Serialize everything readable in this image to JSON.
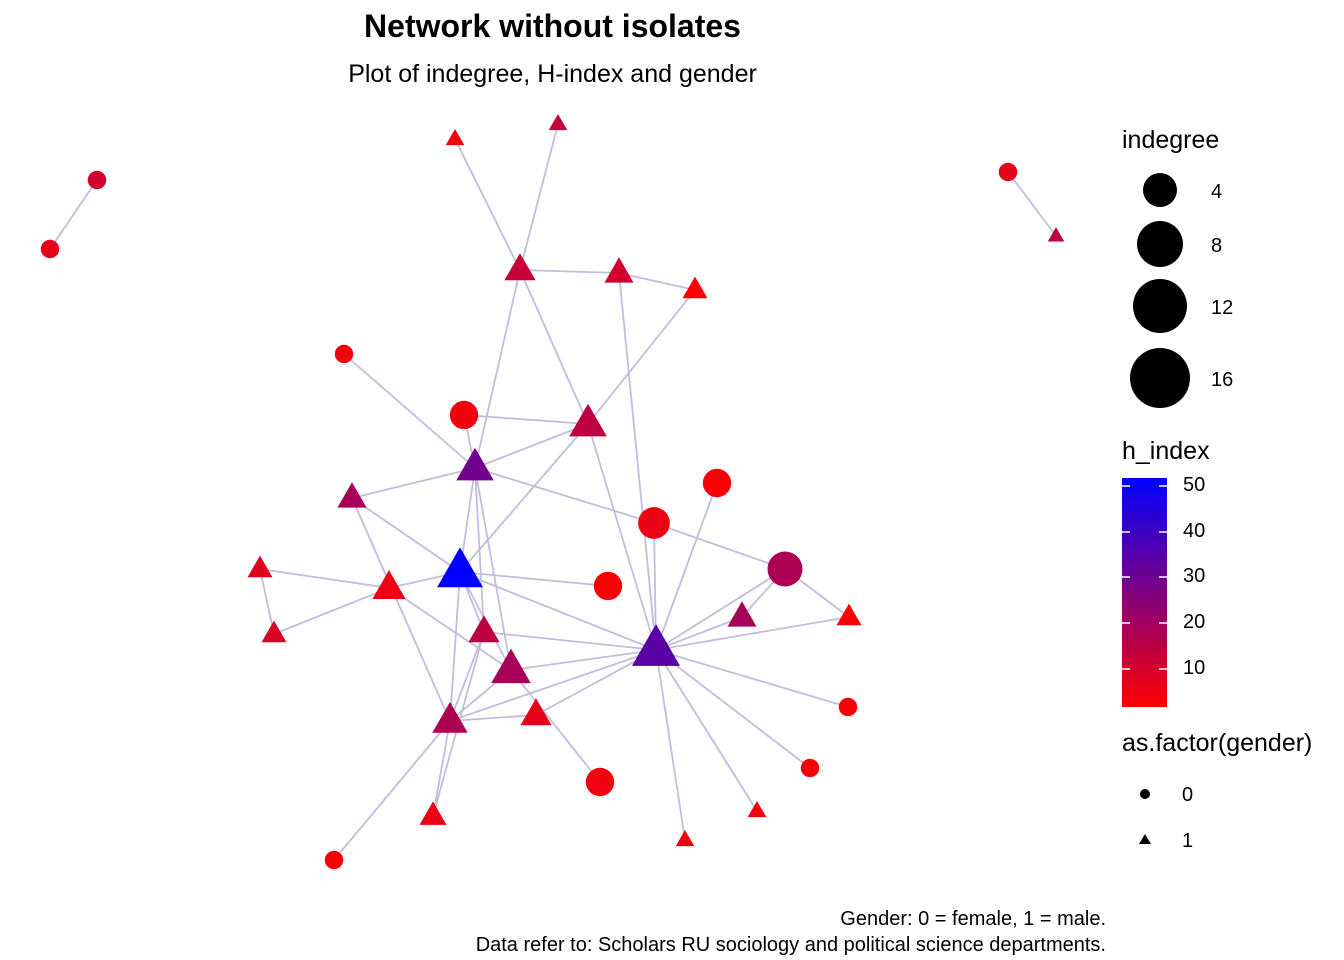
{
  "title": "Network without isolates",
  "subtitle": "Plot of indegree, H-index and gender",
  "caption": {
    "line1": "Gender: 0 = female, 1 = male.",
    "line2": "Data refer to: Scholars RU sociology and political science departments."
  },
  "legend": {
    "size": {
      "title": "indegree",
      "entries": [
        {
          "label": "4",
          "value": 4
        },
        {
          "label": "8",
          "value": 8
        },
        {
          "label": "12",
          "value": 12
        },
        {
          "label": "16",
          "value": 16
        }
      ]
    },
    "color": {
      "title": "h_index",
      "low_color": "#FF0000",
      "high_color": "#0000FF",
      "range": [
        1,
        53
      ],
      "ticks": [
        {
          "label": "50",
          "value": 50
        },
        {
          "label": "40",
          "value": 40
        },
        {
          "label": "30",
          "value": 30
        },
        {
          "label": "20",
          "value": 20
        },
        {
          "label": "10",
          "value": 10
        }
      ]
    },
    "shape": {
      "title": "as.factor(gender)",
      "entries": [
        {
          "label": "0",
          "shape": "circle"
        },
        {
          "label": "1",
          "shape": "triangle"
        }
      ]
    }
  },
  "colors": {
    "edge": "#BFBEDD",
    "legend_symbol": "#000000"
  }
}
